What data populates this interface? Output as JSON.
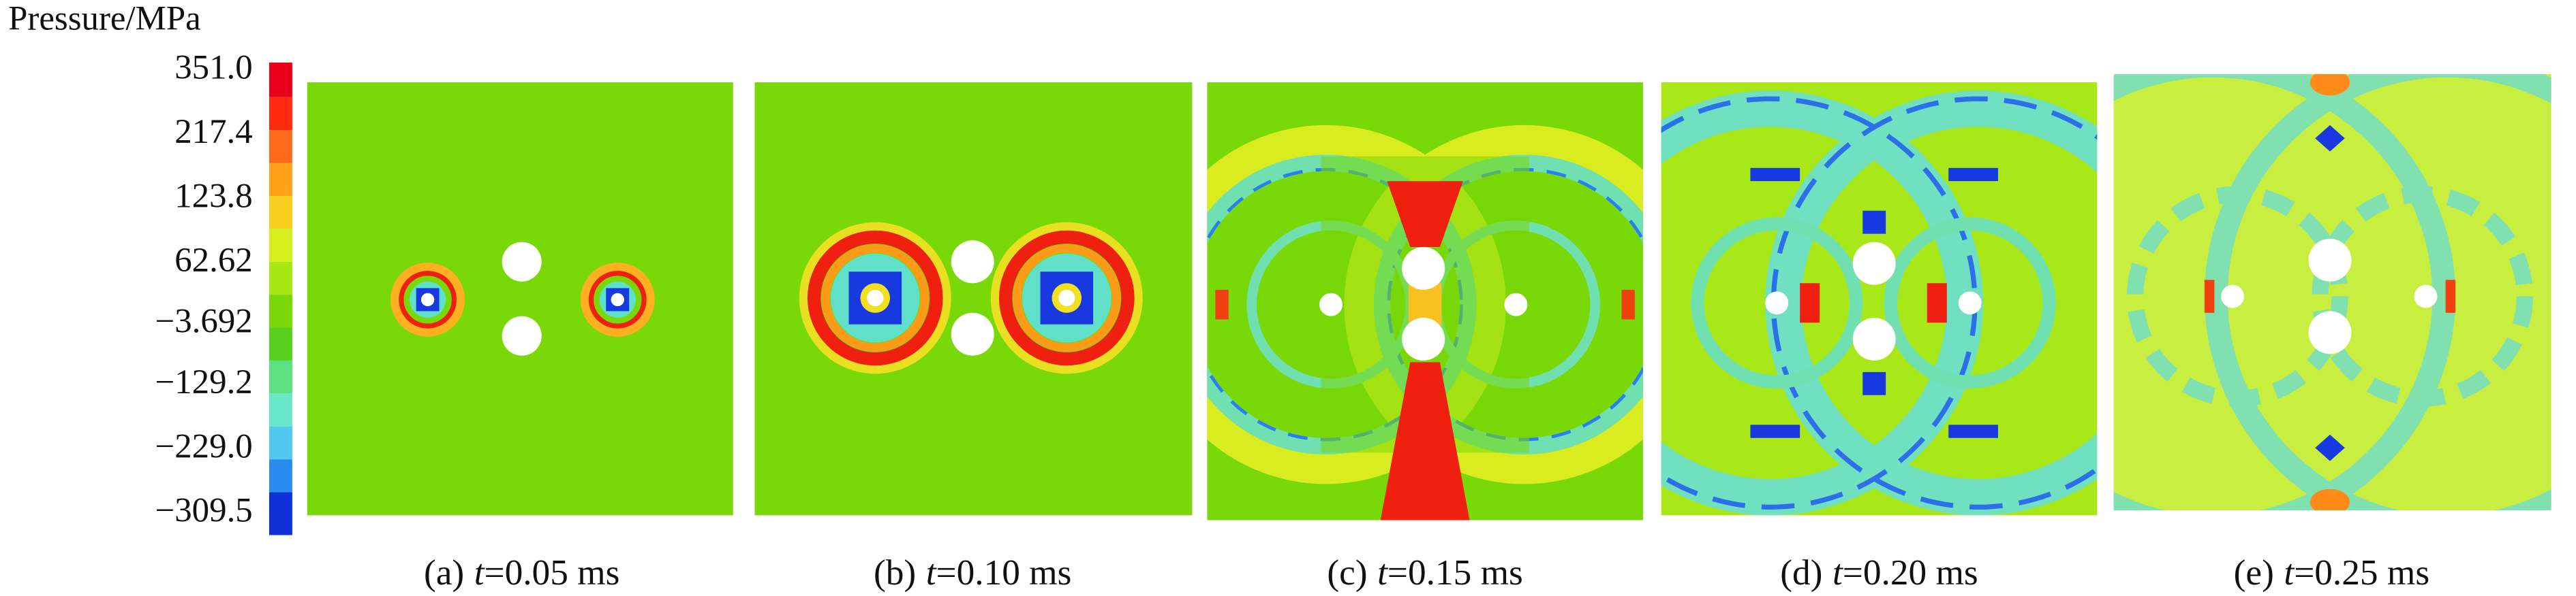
{
  "colorbar": {
    "title": "Pressure/MPa",
    "labels": [
      "351.0",
      "217.4",
      "123.8",
      "62.62",
      "−3.692",
      "−129.2",
      "−229.0",
      "−309.5"
    ]
  },
  "panels": [
    {
      "label": "(a)",
      "variable": "t",
      "value": "=0.05 ms"
    },
    {
      "label": "(b)",
      "variable": "t",
      "value": "=0.10 ms"
    },
    {
      "label": "(c)",
      "variable": "t",
      "value": "=0.15 ms"
    },
    {
      "label": "(d)",
      "variable": "t",
      "value": "=0.20 ms"
    },
    {
      "label": "(e)",
      "variable": "t",
      "value": "=0.25 ms"
    }
  ]
}
